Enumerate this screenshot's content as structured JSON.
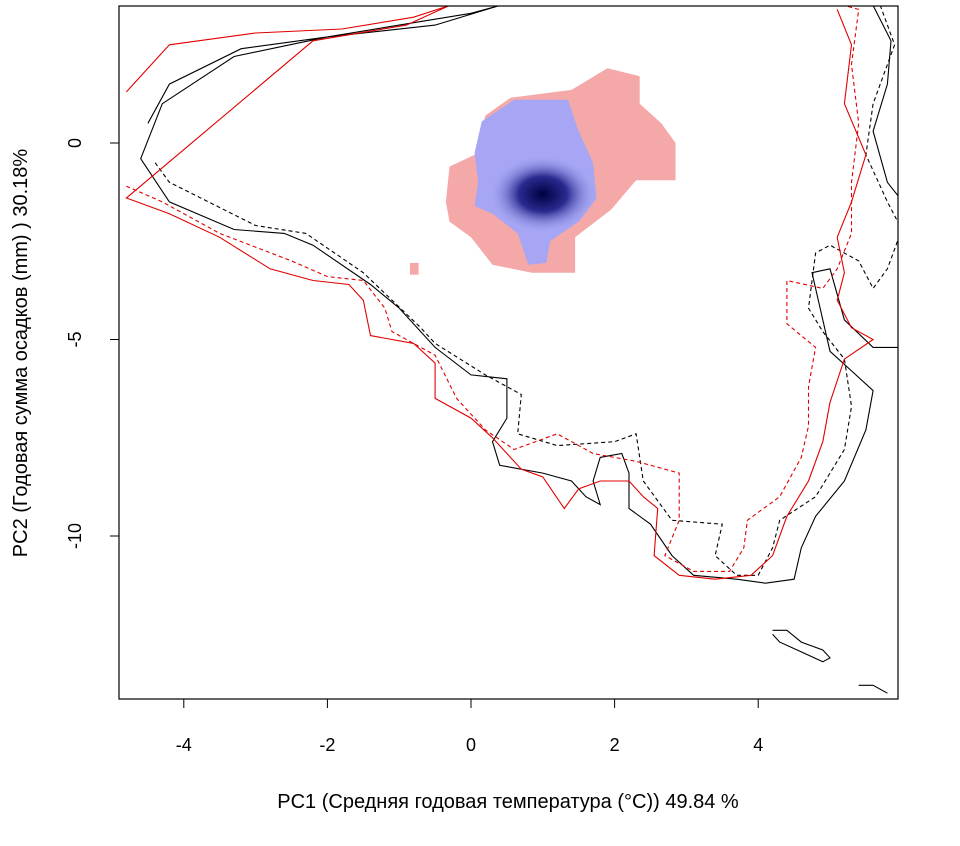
{
  "chart_data": {
    "type": "heatmap",
    "xlabel": "PC1 (Средняя годовая температура (°C)) 49.84 %",
    "ylabel": "PC2 (Годовая сумма осадков  (mm) ) 30.18%",
    "xlim": [
      -4.8,
      6.2
    ],
    "ylim": [
      -14.0,
      3.5
    ],
    "x_ticks": [
      -4,
      -2,
      0,
      2,
      4
    ],
    "y_ticks": [
      0,
      -5,
      -10
    ],
    "grid": false,
    "colors": {
      "overlap_low": "#a6a6f5",
      "overlap_high": "#000040",
      "non_overlap": "#f5a8a8",
      "contour_black": "#000000",
      "contour_red": "#e00000"
    },
    "regions": [
      {
        "name": "non-overlap",
        "polygon": [
          [
            -0.35,
            -1.5
          ],
          [
            -0.3,
            -0.6
          ],
          [
            0.05,
            -0.3
          ],
          [
            0.2,
            0.7
          ],
          [
            0.55,
            1.15
          ],
          [
            1.4,
            1.35
          ],
          [
            1.9,
            1.9
          ],
          [
            2.35,
            1.7
          ],
          [
            2.35,
            1.0
          ],
          [
            2.65,
            0.5
          ],
          [
            2.85,
            0.0
          ],
          [
            2.85,
            -0.95
          ],
          [
            2.3,
            -0.95
          ],
          [
            1.95,
            -1.7
          ],
          [
            1.45,
            -2.4
          ],
          [
            1.45,
            -3.3
          ],
          [
            0.85,
            -3.3
          ],
          [
            0.3,
            -3.1
          ],
          [
            0.0,
            -2.4
          ],
          [
            -0.3,
            -2.0
          ]
        ],
        "extra_cells": [
          [
            -0.85,
            -3.35,
            0.12,
            0.3
          ]
        ]
      },
      {
        "name": "overlap",
        "polygon": [
          [
            0.05,
            -0.25
          ],
          [
            0.15,
            0.55
          ],
          [
            0.6,
            1.1
          ],
          [
            1.35,
            1.1
          ],
          [
            1.5,
            0.3
          ],
          [
            1.7,
            -0.5
          ],
          [
            1.75,
            -1.4
          ],
          [
            1.5,
            -2.0
          ],
          [
            1.1,
            -2.5
          ],
          [
            1.05,
            -3.05
          ],
          [
            0.8,
            -3.1
          ],
          [
            0.65,
            -2.3
          ],
          [
            0.3,
            -1.8
          ],
          [
            0.05,
            -1.6
          ],
          [
            0.1,
            -1.0
          ]
        ],
        "core": {
          "center": [
            1.0,
            -1.3
          ],
          "radius": [
            0.75,
            0.45
          ]
        }
      }
    ],
    "contours": [
      {
        "color": "black",
        "dash": false,
        "points": [
          [
            -4.5,
            0.5
          ],
          [
            -4.2,
            1.5
          ],
          [
            -3.2,
            2.4
          ],
          [
            -2.0,
            2.7
          ],
          [
            -1.0,
            3.0
          ],
          [
            0.0,
            3.3
          ],
          [
            0.4,
            3.5
          ],
          [
            -0.5,
            3.0
          ],
          [
            -2.0,
            2.7
          ],
          [
            -3.3,
            2.2
          ],
          [
            -4.3,
            1.0
          ],
          [
            -4.6,
            -0.4
          ],
          [
            -4.2,
            -1.5
          ],
          [
            -3.3,
            -2.2
          ],
          [
            -2.6,
            -2.3
          ],
          [
            -2.2,
            -2.6
          ],
          [
            -1.4,
            -3.6
          ],
          [
            -1.0,
            -4.2
          ],
          [
            -0.5,
            -5.2
          ],
          [
            0.0,
            -5.9
          ],
          [
            0.5,
            -6.0
          ],
          [
            0.5,
            -7.0
          ],
          [
            0.3,
            -7.6
          ],
          [
            0.4,
            -8.2
          ],
          [
            1.0,
            -8.4
          ],
          [
            1.4,
            -8.6
          ],
          [
            1.6,
            -9.0
          ],
          [
            1.8,
            -9.2
          ],
          [
            1.7,
            -8.6
          ],
          [
            1.8,
            -8.0
          ],
          [
            2.1,
            -7.9
          ],
          [
            2.2,
            -8.4
          ],
          [
            2.2,
            -9.3
          ],
          [
            2.5,
            -9.7
          ],
          [
            2.8,
            -10.5
          ],
          [
            3.1,
            -11.0
          ],
          [
            3.7,
            -11.1
          ],
          [
            4.1,
            -11.2
          ],
          [
            4.5,
            -11.1
          ],
          [
            4.6,
            -10.3
          ],
          [
            4.8,
            -9.5
          ],
          [
            5.2,
            -8.6
          ],
          [
            5.5,
            -7.3
          ],
          [
            5.6,
            -6.3
          ],
          [
            5.3,
            -5.8
          ],
          [
            5.0,
            -5.3
          ],
          [
            4.9,
            -4.5
          ],
          [
            4.75,
            -3.3
          ],
          [
            5.0,
            -3.2
          ],
          [
            5.2,
            -4.5
          ],
          [
            5.6,
            -5.2
          ],
          [
            6.0,
            -5.2
          ],
          [
            6.2,
            -4.5
          ],
          [
            6.1,
            -1.7
          ],
          [
            5.8,
            -1.0
          ],
          [
            5.6,
            0.3
          ],
          [
            5.8,
            1.5
          ],
          [
            5.85,
            2.6
          ],
          [
            5.6,
            3.5
          ]
        ]
      },
      {
        "color": "black",
        "dash": true,
        "points": [
          [
            -4.4,
            -0.5
          ],
          [
            -4.2,
            -1.0
          ],
          [
            -3.0,
            -2.1
          ],
          [
            -2.3,
            -2.3
          ],
          [
            -1.5,
            -3.3
          ],
          [
            -1.1,
            -4.0
          ],
          [
            -0.7,
            -4.7
          ],
          [
            -0.5,
            -5.1
          ],
          [
            0.2,
            -5.9
          ],
          [
            0.7,
            -6.4
          ],
          [
            0.65,
            -7.4
          ],
          [
            1.2,
            -7.7
          ],
          [
            2.0,
            -7.6
          ],
          [
            2.3,
            -7.4
          ],
          [
            2.4,
            -8.6
          ],
          [
            2.8,
            -9.6
          ],
          [
            3.5,
            -9.7
          ],
          [
            3.4,
            -10.5
          ],
          [
            3.7,
            -11.0
          ],
          [
            4.0,
            -11.0
          ],
          [
            4.2,
            -10.3
          ],
          [
            4.3,
            -9.6
          ],
          [
            4.8,
            -9.0
          ],
          [
            5.2,
            -7.8
          ],
          [
            5.3,
            -6.7
          ],
          [
            5.2,
            -5.5
          ],
          [
            4.9,
            -4.8
          ],
          [
            4.7,
            -4.2
          ],
          [
            4.8,
            -2.8
          ],
          [
            5.0,
            -2.6
          ],
          [
            5.4,
            -3.0
          ],
          [
            5.6,
            -3.7
          ],
          [
            5.8,
            -3.2
          ],
          [
            6.0,
            -2.2
          ],
          [
            5.8,
            -1.5
          ],
          [
            5.5,
            -0.3
          ],
          [
            5.6,
            1.0
          ],
          [
            5.9,
            2.5
          ],
          [
            5.7,
            3.5
          ]
        ]
      },
      {
        "color": "red",
        "dash": false,
        "points": [
          [
            -4.8,
            1.3
          ],
          [
            -4.2,
            2.5
          ],
          [
            -3.0,
            2.8
          ],
          [
            -1.8,
            2.9
          ],
          [
            -0.8,
            3.2
          ],
          [
            -0.3,
            3.5
          ],
          [
            -0.9,
            3.0
          ],
          [
            -2.2,
            2.6
          ],
          [
            -4.8,
            -1.4
          ],
          [
            -4.2,
            -1.8
          ],
          [
            -3.5,
            -2.4
          ],
          [
            -2.8,
            -3.2
          ],
          [
            -2.2,
            -3.5
          ],
          [
            -1.7,
            -3.6
          ],
          [
            -1.5,
            -4.0
          ],
          [
            -1.4,
            -4.9
          ],
          [
            -0.8,
            -5.1
          ],
          [
            -0.5,
            -5.6
          ],
          [
            -0.5,
            -6.5
          ],
          [
            0.0,
            -7.0
          ],
          [
            0.3,
            -7.5
          ],
          [
            0.7,
            -8.3
          ],
          [
            1.0,
            -8.5
          ],
          [
            1.3,
            -9.3
          ],
          [
            1.5,
            -8.8
          ],
          [
            1.8,
            -8.6
          ],
          [
            2.2,
            -8.6
          ],
          [
            2.4,
            -9.0
          ],
          [
            2.6,
            -9.3
          ],
          [
            2.55,
            -10.5
          ],
          [
            2.9,
            -11.0
          ],
          [
            3.4,
            -11.1
          ],
          [
            3.9,
            -11.0
          ],
          [
            4.2,
            -10.5
          ],
          [
            4.4,
            -9.5
          ],
          [
            4.7,
            -8.6
          ],
          [
            4.9,
            -7.6
          ],
          [
            5.0,
            -6.6
          ],
          [
            5.2,
            -5.5
          ],
          [
            5.6,
            -5.0
          ],
          [
            5.3,
            -4.7
          ],
          [
            5.1,
            -4.0
          ],
          [
            5.2,
            -3.3
          ],
          [
            5.1,
            -2.4
          ],
          [
            5.3,
            -1.5
          ],
          [
            5.5,
            -0.3
          ],
          [
            5.2,
            1.0
          ],
          [
            5.3,
            2.5
          ],
          [
            5.1,
            3.4
          ]
        ]
      },
      {
        "color": "red",
        "dash": true,
        "points": [
          [
            -4.8,
            -1.1
          ],
          [
            -4.3,
            -1.5
          ],
          [
            -3.5,
            -2.3
          ],
          [
            -2.5,
            -3.0
          ],
          [
            -2.0,
            -3.4
          ],
          [
            -1.5,
            -3.5
          ],
          [
            -1.2,
            -4.2
          ],
          [
            -1.1,
            -4.8
          ],
          [
            -0.5,
            -5.4
          ],
          [
            -0.2,
            -6.5
          ],
          [
            0.2,
            -7.3
          ],
          [
            0.6,
            -7.8
          ],
          [
            1.2,
            -7.4
          ],
          [
            1.7,
            -7.9
          ],
          [
            2.3,
            -8.1
          ],
          [
            2.9,
            -8.4
          ],
          [
            2.9,
            -9.6
          ],
          [
            2.7,
            -10.5
          ],
          [
            3.1,
            -10.9
          ],
          [
            3.6,
            -10.9
          ],
          [
            3.8,
            -10.3
          ],
          [
            3.85,
            -9.6
          ],
          [
            4.3,
            -9.0
          ],
          [
            4.6,
            -8.0
          ],
          [
            4.7,
            -7.2
          ],
          [
            4.7,
            -6.2
          ],
          [
            4.8,
            -5.2
          ],
          [
            4.4,
            -4.6
          ],
          [
            4.4,
            -3.5
          ],
          [
            4.9,
            -3.7
          ],
          [
            5.1,
            -3.2
          ],
          [
            5.3,
            -2.3
          ],
          [
            5.3,
            -1.0
          ],
          [
            5.4,
            0.5
          ],
          [
            5.3,
            2.0
          ],
          [
            5.4,
            3.4
          ],
          [
            5.2,
            3.5
          ]
        ]
      },
      {
        "color": "black",
        "dash": false,
        "points": [
          [
            4.2,
            -12.4
          ],
          [
            4.4,
            -12.4
          ],
          [
            4.6,
            -12.7
          ],
          [
            4.9,
            -12.9
          ],
          [
            5.0,
            -13.1
          ],
          [
            4.9,
            -13.2
          ],
          [
            4.6,
            -12.95
          ],
          [
            4.3,
            -12.7
          ],
          [
            4.2,
            -12.5
          ]
        ]
      },
      {
        "color": "black",
        "dash": false,
        "points": [
          [
            5.4,
            -13.8
          ],
          [
            5.6,
            -13.8
          ],
          [
            5.8,
            -14.0
          ]
        ]
      }
    ]
  }
}
